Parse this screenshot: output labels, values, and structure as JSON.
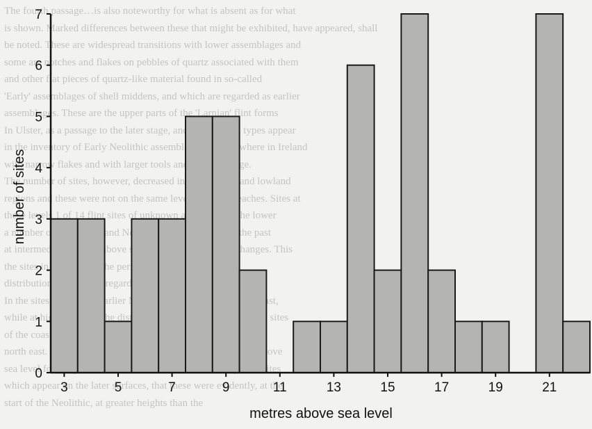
{
  "background_text": [
    "The fourth passage…is also noteworthy for what is absent as for what",
    "is shown. Marked differences between these that might be exhibited, have appeared, shall",
    "be noted. These are widespread transitions with lower assemblages and",
    "some are notches and flakes on pebbles of quartz associated with them",
    "and other flat pieces of quartz-like material found in so-called",
    "'Early' assemblages of shell middens, and which are regarded as earlier",
    "assemblages. These are the upper parts of the 'Larnian' flint forms",
    "In Ulster, as a passage to the later stage, and more varied types appear",
    "in the inventory of Early Neolithic assemblages and elsewhere in Ireland",
    "with narrow flakes and with larger tools and the later stage.",
    "The number of sites, however, decreased in both upland and lowland",
    "regions and these were not on the same level as raised beaches. Sites at",
    "these levels 1 of 14 flint sites of unknown age, occur in the lower",
    "a number of Mesolithic and Neolithic artefacts found in the past",
    "at intermediate heights above sea level, in the sea level changes. This",
    "the sites in the site and the period indicated by the",
    "distribution of the sites, regarding the shore position was noted",
    "In the sites, how these earlier Neolithic people regarded the coast,",
    "while at higher heights the distribution was less typical, but the sites",
    "of the coastline and landscape in that area of the",
    "north east. Mesolithic sites shown in the distribution of sites above",
    "sea level for the period associated with the lowest occupation sites",
    "which appear on the later surfaces, that these were evidently, at the",
    "start of the Neolithic, at greater heights than the"
  ],
  "chart_data": {
    "type": "bar",
    "categories": [
      3,
      4,
      5,
      6,
      7,
      8,
      9,
      10,
      11,
      12,
      13,
      14,
      15,
      16,
      17,
      18,
      19,
      20,
      21,
      22
    ],
    "values": [
      3,
      3,
      1,
      3,
      3,
      5,
      5,
      2,
      0,
      1,
      1,
      6,
      2,
      7,
      2,
      1,
      1,
      0,
      7,
      1
    ],
    "x_tick_labels": [
      "3",
      "5",
      "7",
      "9",
      "11",
      "13",
      "15",
      "17",
      "19",
      "21"
    ],
    "y_tick_labels": [
      "0",
      "1",
      "2",
      "3",
      "4",
      "5",
      "6",
      "7"
    ],
    "xlabel": "metres above sea level",
    "ylabel": "number of sites",
    "ylim": [
      0,
      7
    ],
    "xlim": [
      2.5,
      22.5
    ],
    "grid": false,
    "colors": {
      "bar_fill": "#b4b4b2",
      "bar_stroke": "#1a1a1a",
      "axis": "#111111"
    }
  }
}
